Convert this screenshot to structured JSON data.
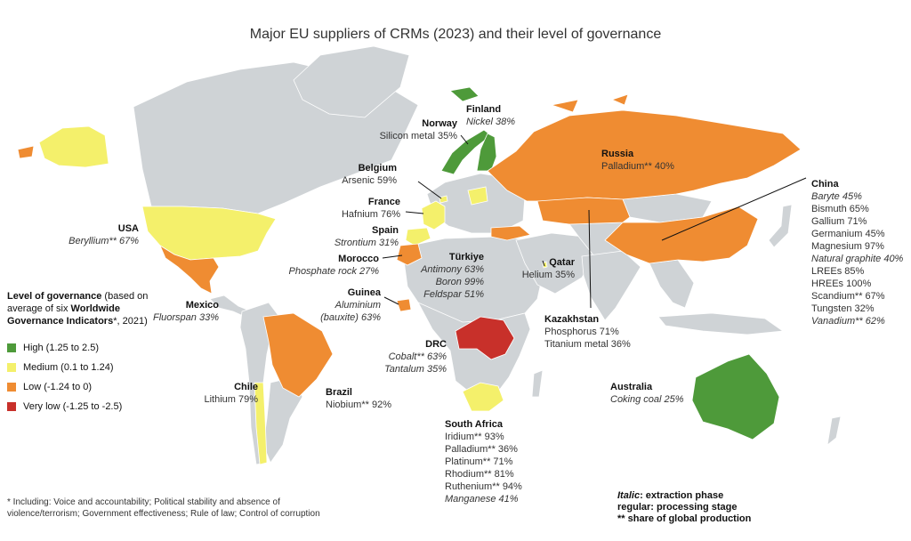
{
  "title": "Major EU suppliers of CRMs (2023) and their level of governance",
  "colors": {
    "high": "#4e9a3a",
    "medium": "#f4f06b",
    "low": "#ef8c32",
    "very_low": "#c8302a",
    "neutral": "#cfd3d6",
    "ocean": "#ffffff"
  },
  "legend": {
    "title_bold": "Level of governance",
    "title_rest": " (based on average of six ",
    "title_bold2": "Worldwide Governance Indicators",
    "title_rest2": "*, 2021)",
    "items": [
      {
        "label": "High (1.25 to 2.5)",
        "color": "#4e9a3a"
      },
      {
        "label": "Medium (0.1 to 1.24)",
        "color": "#f4f06b"
      },
      {
        "label": "Low (-1.24 to 0)",
        "color": "#ef8c32"
      },
      {
        "label": "Very low (-1.25 to -2.5)",
        "color": "#c8302a"
      }
    ]
  },
  "footnote": "* Including: Voice and accountability; Political stability and absence of violence/terrorism; Government effectiveness; Rule of law; Control of corruption",
  "key": {
    "italic_label": "Italic",
    "italic_text": ": extraction phase",
    "regular": "regular: processing stage",
    "share": "** share of global production"
  },
  "countries": {
    "usa": {
      "name": "USA",
      "lines": [
        {
          "t": "Beryllium** 67%",
          "i": true
        }
      ]
    },
    "mexico": {
      "name": "Mexico",
      "lines": [
        {
          "t": "Fluorspan 33%",
          "i": true
        }
      ]
    },
    "chile": {
      "name": "Chile",
      "lines": [
        {
          "t": "Lithium 79%",
          "i": false
        }
      ]
    },
    "brazil": {
      "name": "Brazil",
      "lines": [
        {
          "t": "Niobium** 92%",
          "i": false
        }
      ]
    },
    "norway": {
      "name": "Norway",
      "lines": [
        {
          "t": "Silicon metal 35%",
          "i": false
        }
      ]
    },
    "finland": {
      "name": "Finland",
      "lines": [
        {
          "t": "Nickel 38%",
          "i": true
        }
      ]
    },
    "belgium": {
      "name": "Belgium",
      "lines": [
        {
          "t": "Arsenic 59%",
          "i": false
        }
      ]
    },
    "france": {
      "name": "France",
      "lines": [
        {
          "t": "Hafnium 76%",
          "i": false
        }
      ]
    },
    "spain": {
      "name": "Spain",
      "lines": [
        {
          "t": "Strontium 31%",
          "i": true
        }
      ]
    },
    "morocco": {
      "name": "Morocco",
      "lines": [
        {
          "t": "Phosphate rock 27%",
          "i": true
        }
      ]
    },
    "guinea": {
      "name": "Guinea",
      "lines": [
        {
          "t": "Aluminium",
          "i": true
        },
        {
          "t": "(bauxite) 63%",
          "i": true
        }
      ]
    },
    "turkiye": {
      "name": "Türkiye",
      "lines": [
        {
          "t": "Antimony 63%",
          "i": true
        },
        {
          "t": "Boron 99%",
          "i": true
        },
        {
          "t": "Feldspar 51%",
          "i": true
        }
      ]
    },
    "qatar": {
      "name": "Qatar",
      "lines": [
        {
          "t": "Helium 35%",
          "i": false
        }
      ]
    },
    "drc": {
      "name": "DRC",
      "lines": [
        {
          "t": "Cobalt** 63%",
          "i": true
        },
        {
          "t": "Tantalum 35%",
          "i": true
        }
      ]
    },
    "russia": {
      "name": "Russia",
      "lines": [
        {
          "t": "Palladium** 40%",
          "i": false
        }
      ]
    },
    "kazakhstan": {
      "name": "Kazakhstan",
      "lines": [
        {
          "t": "Phosphorus 71%",
          "i": false
        },
        {
          "t": "Titanium metal 36%",
          "i": false
        }
      ]
    },
    "china": {
      "name": "China",
      "lines": [
        {
          "t": "Baryte 45%",
          "i": true
        },
        {
          "t": "Bismuth 65%",
          "i": false
        },
        {
          "t": "Gallium 71%",
          "i": false
        },
        {
          "t": "Germanium 45%",
          "i": false
        },
        {
          "t": "Magnesium 97%",
          "i": false
        },
        {
          "t": "Natural graphite 40%",
          "i": true
        },
        {
          "t": "LREEs 85%",
          "i": false
        },
        {
          "t": "HREEs 100%",
          "i": false
        },
        {
          "t": "Scandium** 67%",
          "i": false
        },
        {
          "t": "Tungsten 32%",
          "i": false
        },
        {
          "t": "Vanadium** 62%",
          "i": true
        }
      ]
    },
    "south_africa": {
      "name": "South Africa",
      "lines": [
        {
          "t": "Iridium** 93%",
          "i": false
        },
        {
          "t": "Palladium** 36%",
          "i": false
        },
        {
          "t": "Platinum** 71%",
          "i": false
        },
        {
          "t": "Rhodium** 81%",
          "i": false
        },
        {
          "t": "Ruthenium** 94%",
          "i": false
        },
        {
          "t": "Manganese 41%",
          "i": true
        }
      ]
    },
    "australia": {
      "name": "Australia",
      "lines": [
        {
          "t": "Coking coal 25%",
          "i": true
        }
      ]
    }
  }
}
